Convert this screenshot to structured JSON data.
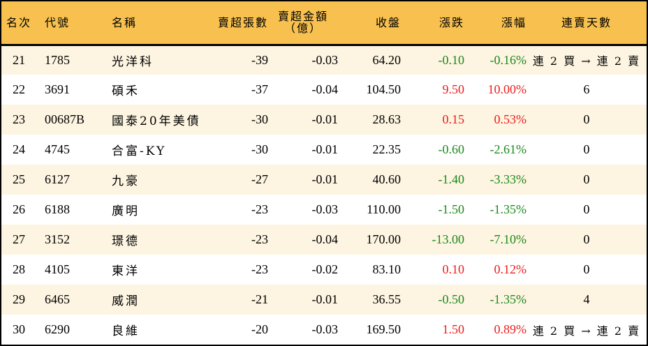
{
  "table": {
    "headers": {
      "rank": "名次",
      "code": "代號",
      "name": "名稱",
      "net_sell_volume": "賣超張數",
      "net_sell_amount_line1": "賣超金額",
      "net_sell_amount_line2": "（億）",
      "close": "收盤",
      "change": "漲跌",
      "change_pct": "漲幅",
      "consecutive_sell_days": "連賣天數"
    },
    "rows": [
      {
        "rank": "21",
        "code": "1785",
        "name": "光洋科",
        "vol": "-39",
        "amt": "-0.03",
        "close": "64.20",
        "chg": "-0.10",
        "pct": "-0.16%",
        "dir": "down",
        "streak": "連 2 買 → 連 2 賣"
      },
      {
        "rank": "22",
        "code": "3691",
        "name": "碩禾",
        "vol": "-37",
        "amt": "-0.04",
        "close": "104.50",
        "chg": "9.50",
        "pct": "10.00%",
        "dir": "up",
        "streak": "6"
      },
      {
        "rank": "23",
        "code": "00687B",
        "name": "國泰20年美債",
        "vol": "-30",
        "amt": "-0.01",
        "close": "28.63",
        "chg": "0.15",
        "pct": "0.53%",
        "dir": "up",
        "streak": "0"
      },
      {
        "rank": "24",
        "code": "4745",
        "name": "合富-KY",
        "vol": "-30",
        "amt": "-0.01",
        "close": "22.35",
        "chg": "-0.60",
        "pct": "-2.61%",
        "dir": "down",
        "streak": "0"
      },
      {
        "rank": "25",
        "code": "6127",
        "name": "九豪",
        "vol": "-27",
        "amt": "-0.01",
        "close": "40.60",
        "chg": "-1.40",
        "pct": "-3.33%",
        "dir": "down",
        "streak": "0"
      },
      {
        "rank": "26",
        "code": "6188",
        "name": "廣明",
        "vol": "-23",
        "amt": "-0.03",
        "close": "110.00",
        "chg": "-1.50",
        "pct": "-1.35%",
        "dir": "down",
        "streak": "0"
      },
      {
        "rank": "27",
        "code": "3152",
        "name": "璟德",
        "vol": "-23",
        "amt": "-0.04",
        "close": "170.00",
        "chg": "-13.00",
        "pct": "-7.10%",
        "dir": "down",
        "streak": "0"
      },
      {
        "rank": "28",
        "code": "4105",
        "name": "東洋",
        "vol": "-23",
        "amt": "-0.02",
        "close": "83.10",
        "chg": "0.10",
        "pct": "0.12%",
        "dir": "up",
        "streak": "0"
      },
      {
        "rank": "29",
        "code": "6465",
        "name": "威潤",
        "vol": "-21",
        "amt": "-0.01",
        "close": "36.55",
        "chg": "-0.50",
        "pct": "-1.35%",
        "dir": "down",
        "streak": "4"
      },
      {
        "rank": "30",
        "code": "6290",
        "name": "良維",
        "vol": "-20",
        "amt": "-0.03",
        "close": "169.50",
        "chg": "1.50",
        "pct": "0.89%",
        "dir": "up",
        "streak": "連 2 買 → 連 2 賣"
      }
    ]
  },
  "colors": {
    "header_bg": "#f8c14f",
    "odd_row_bg": "#fdf4e1",
    "even_row_bg": "#ffffff",
    "up": "#ee1c1c",
    "down": "#1a8a1a",
    "border": "#000000"
  }
}
